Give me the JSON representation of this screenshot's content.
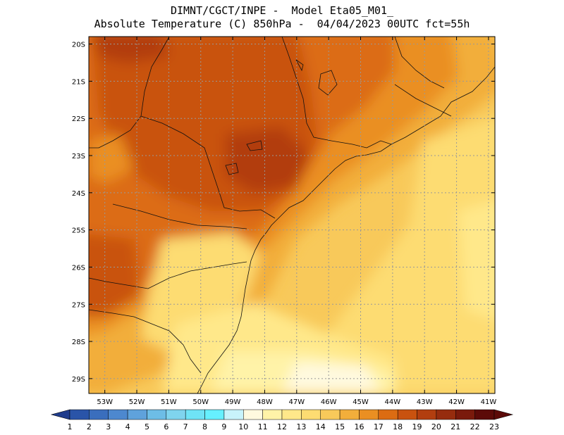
{
  "header": {
    "line1": "DIMNT/CGCT/INPE -  Model Eta05_M01_",
    "line2": "Absolute Temperature (C) 850hPa -  04/04/2023 00UTC fct=55h"
  },
  "map": {
    "lat_labels": [
      "20S",
      "21S",
      "22S",
      "23S",
      "24S",
      "25S",
      "26S",
      "27S",
      "28S",
      "29S"
    ],
    "lon_labels": [
      "53W",
      "52W",
      "51W",
      "50W",
      "49W",
      "48W",
      "47W",
      "46W",
      "45W",
      "44W",
      "43W",
      "42W",
      "41W"
    ],
    "lon_range": [
      -53.5,
      -40.8
    ],
    "lat_range": [
      -29.4,
      -19.8
    ],
    "field": "temperature_850hPa_C"
  },
  "colorbar": {
    "labels": [
      "1",
      "2",
      "3",
      "4",
      "5",
      "6",
      "7",
      "8",
      "9",
      "10",
      "11",
      "12",
      "13",
      "14",
      "15",
      "16",
      "17",
      "18",
      "19",
      "20",
      "21",
      "22",
      "23"
    ],
    "colors": [
      "#1f3c8c",
      "#2a54a8",
      "#3a6ebd",
      "#4d88cf",
      "#5fa2dc",
      "#6dbde6",
      "#7fd4ee",
      "#6fe3f6",
      "#66f0ff",
      "#c8f3fb",
      "#fff9df",
      "#fff3a8",
      "#ffe88a",
      "#fddc72",
      "#f8c95a",
      "#f2ae3b",
      "#ea8f22",
      "#dc6c12",
      "#c9520f",
      "#b23e0f",
      "#962c0e",
      "#7a1a0c",
      "#5c0a08"
    ]
  }
}
